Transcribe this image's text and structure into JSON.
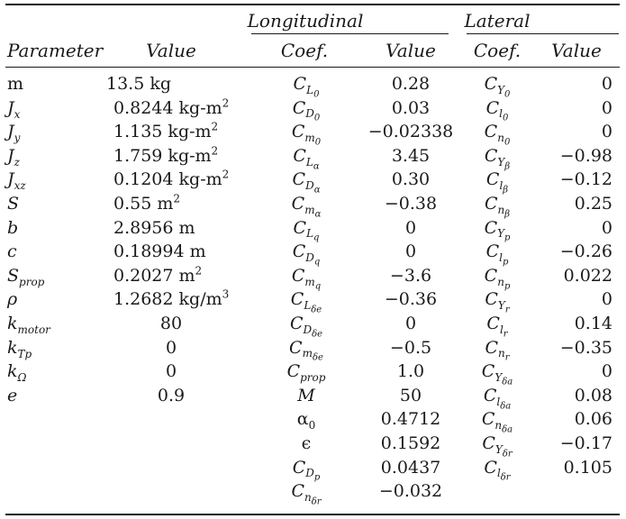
{
  "header": {
    "group_longitudinal": "Longitudinal",
    "group_lateral": "Lateral",
    "col_parameter": "Parameter",
    "col_value": "Value",
    "col_long_coef": "Coef.",
    "col_long_value": "Value",
    "col_lat_coef": "Coef.",
    "col_lat_value": "Value"
  },
  "parameters": [
    {
      "name": "m",
      "sub": "",
      "value": "13.5 kg"
    },
    {
      "name": "J",
      "sub": "x",
      "value": "0.8244 kg-m²"
    },
    {
      "name": "J",
      "sub": "y",
      "value": "1.135 kg-m²"
    },
    {
      "name": "J",
      "sub": "z",
      "value": "1.759 kg-m²"
    },
    {
      "name": "J",
      "sub": "xz",
      "value": "0.1204 kg-m²"
    },
    {
      "name": "S",
      "sub": "",
      "value": "0.55 m²"
    },
    {
      "name": "b",
      "sub": "",
      "value": "2.8956 m"
    },
    {
      "name": "c",
      "sub": "",
      "value": "0.18994 m"
    },
    {
      "name": "S",
      "sub": "prop",
      "value": "0.2027 m²"
    },
    {
      "name": "ρ",
      "sub": "",
      "value": "1.2682 kg/m³"
    },
    {
      "name": "k",
      "sub": "motor",
      "value": "80"
    },
    {
      "name": "k",
      "sub": "Tp",
      "value": "0"
    },
    {
      "name": "k",
      "sub": "Ω",
      "value": "0"
    },
    {
      "name": "e",
      "sub": "",
      "value": "0.9"
    }
  ],
  "longitudinal": [
    {
      "name": "C",
      "sub": "L",
      "subsub": "0",
      "value": "0.28"
    },
    {
      "name": "C",
      "sub": "D",
      "subsub": "0",
      "value": "0.03"
    },
    {
      "name": "C",
      "sub": "m",
      "subsub": "0",
      "value": "−0.02338"
    },
    {
      "name": "C",
      "sub": "L",
      "subsub": "α",
      "value": "3.45"
    },
    {
      "name": "C",
      "sub": "D",
      "subsub": "α",
      "value": "0.30"
    },
    {
      "name": "C",
      "sub": "m",
      "subsub": "α",
      "value": "−0.38"
    },
    {
      "name": "C",
      "sub": "L",
      "subsub": "q",
      "value": "0"
    },
    {
      "name": "C",
      "sub": "D",
      "subsub": "q",
      "value": "0"
    },
    {
      "name": "C",
      "sub": "m",
      "subsub": "q",
      "value": "−3.6"
    },
    {
      "name": "C",
      "sub": "L",
      "subsub": "δe",
      "value": "−0.36"
    },
    {
      "name": "C",
      "sub": "D",
      "subsub": "δe",
      "value": "0"
    },
    {
      "name": "C",
      "sub": "m",
      "subsub": "δe",
      "value": "−0.5"
    },
    {
      "name": "C",
      "sub": "prop",
      "subsub": "",
      "value": "1.0"
    },
    {
      "name": "M",
      "sub": "",
      "subsub": "",
      "value": "50"
    },
    {
      "name": "α",
      "sub": "0",
      "subsub": "",
      "value": "0.4712"
    },
    {
      "name": "ϵ",
      "sub": "",
      "subsub": "",
      "value": "0.1592"
    },
    {
      "name": "C",
      "sub": "D",
      "subsub": "p",
      "value": "0.0437"
    },
    {
      "name": "C",
      "sub": "n",
      "subsub": "δr",
      "value": "−0.032"
    }
  ],
  "lateral": [
    {
      "name": "C",
      "sub": "Y",
      "subsub": "0",
      "value": "0"
    },
    {
      "name": "C",
      "sub": "l",
      "subsub": "0",
      "value": "0"
    },
    {
      "name": "C",
      "sub": "n",
      "subsub": "0",
      "value": "0"
    },
    {
      "name": "C",
      "sub": "Y",
      "subsub": "β",
      "value": "−0.98"
    },
    {
      "name": "C",
      "sub": "l",
      "subsub": "β",
      "value": "−0.12"
    },
    {
      "name": "C",
      "sub": "n",
      "subsub": "β",
      "value": "0.25"
    },
    {
      "name": "C",
      "sub": "Y",
      "subsub": "p",
      "value": "0"
    },
    {
      "name": "C",
      "sub": "l",
      "subsub": "p",
      "value": "−0.26"
    },
    {
      "name": "C",
      "sub": "n",
      "subsub": "p",
      "value": "0.022"
    },
    {
      "name": "C",
      "sub": "Y",
      "subsub": "r",
      "value": "0"
    },
    {
      "name": "C",
      "sub": "l",
      "subsub": "r",
      "value": "0.14"
    },
    {
      "name": "C",
      "sub": "n",
      "subsub": "r",
      "value": "−0.35"
    },
    {
      "name": "C",
      "sub": "Y",
      "subsub": "δa",
      "value": "0"
    },
    {
      "name": "C",
      "sub": "l",
      "subsub": "δa",
      "value": "0.08"
    },
    {
      "name": "C",
      "sub": "n",
      "subsub": "δa",
      "value": "0.06"
    },
    {
      "name": "C",
      "sub": "Y",
      "subsub": "δr",
      "value": "−0.17"
    },
    {
      "name": "C",
      "sub": "l",
      "subsub": "δr",
      "value": "0.105"
    }
  ]
}
